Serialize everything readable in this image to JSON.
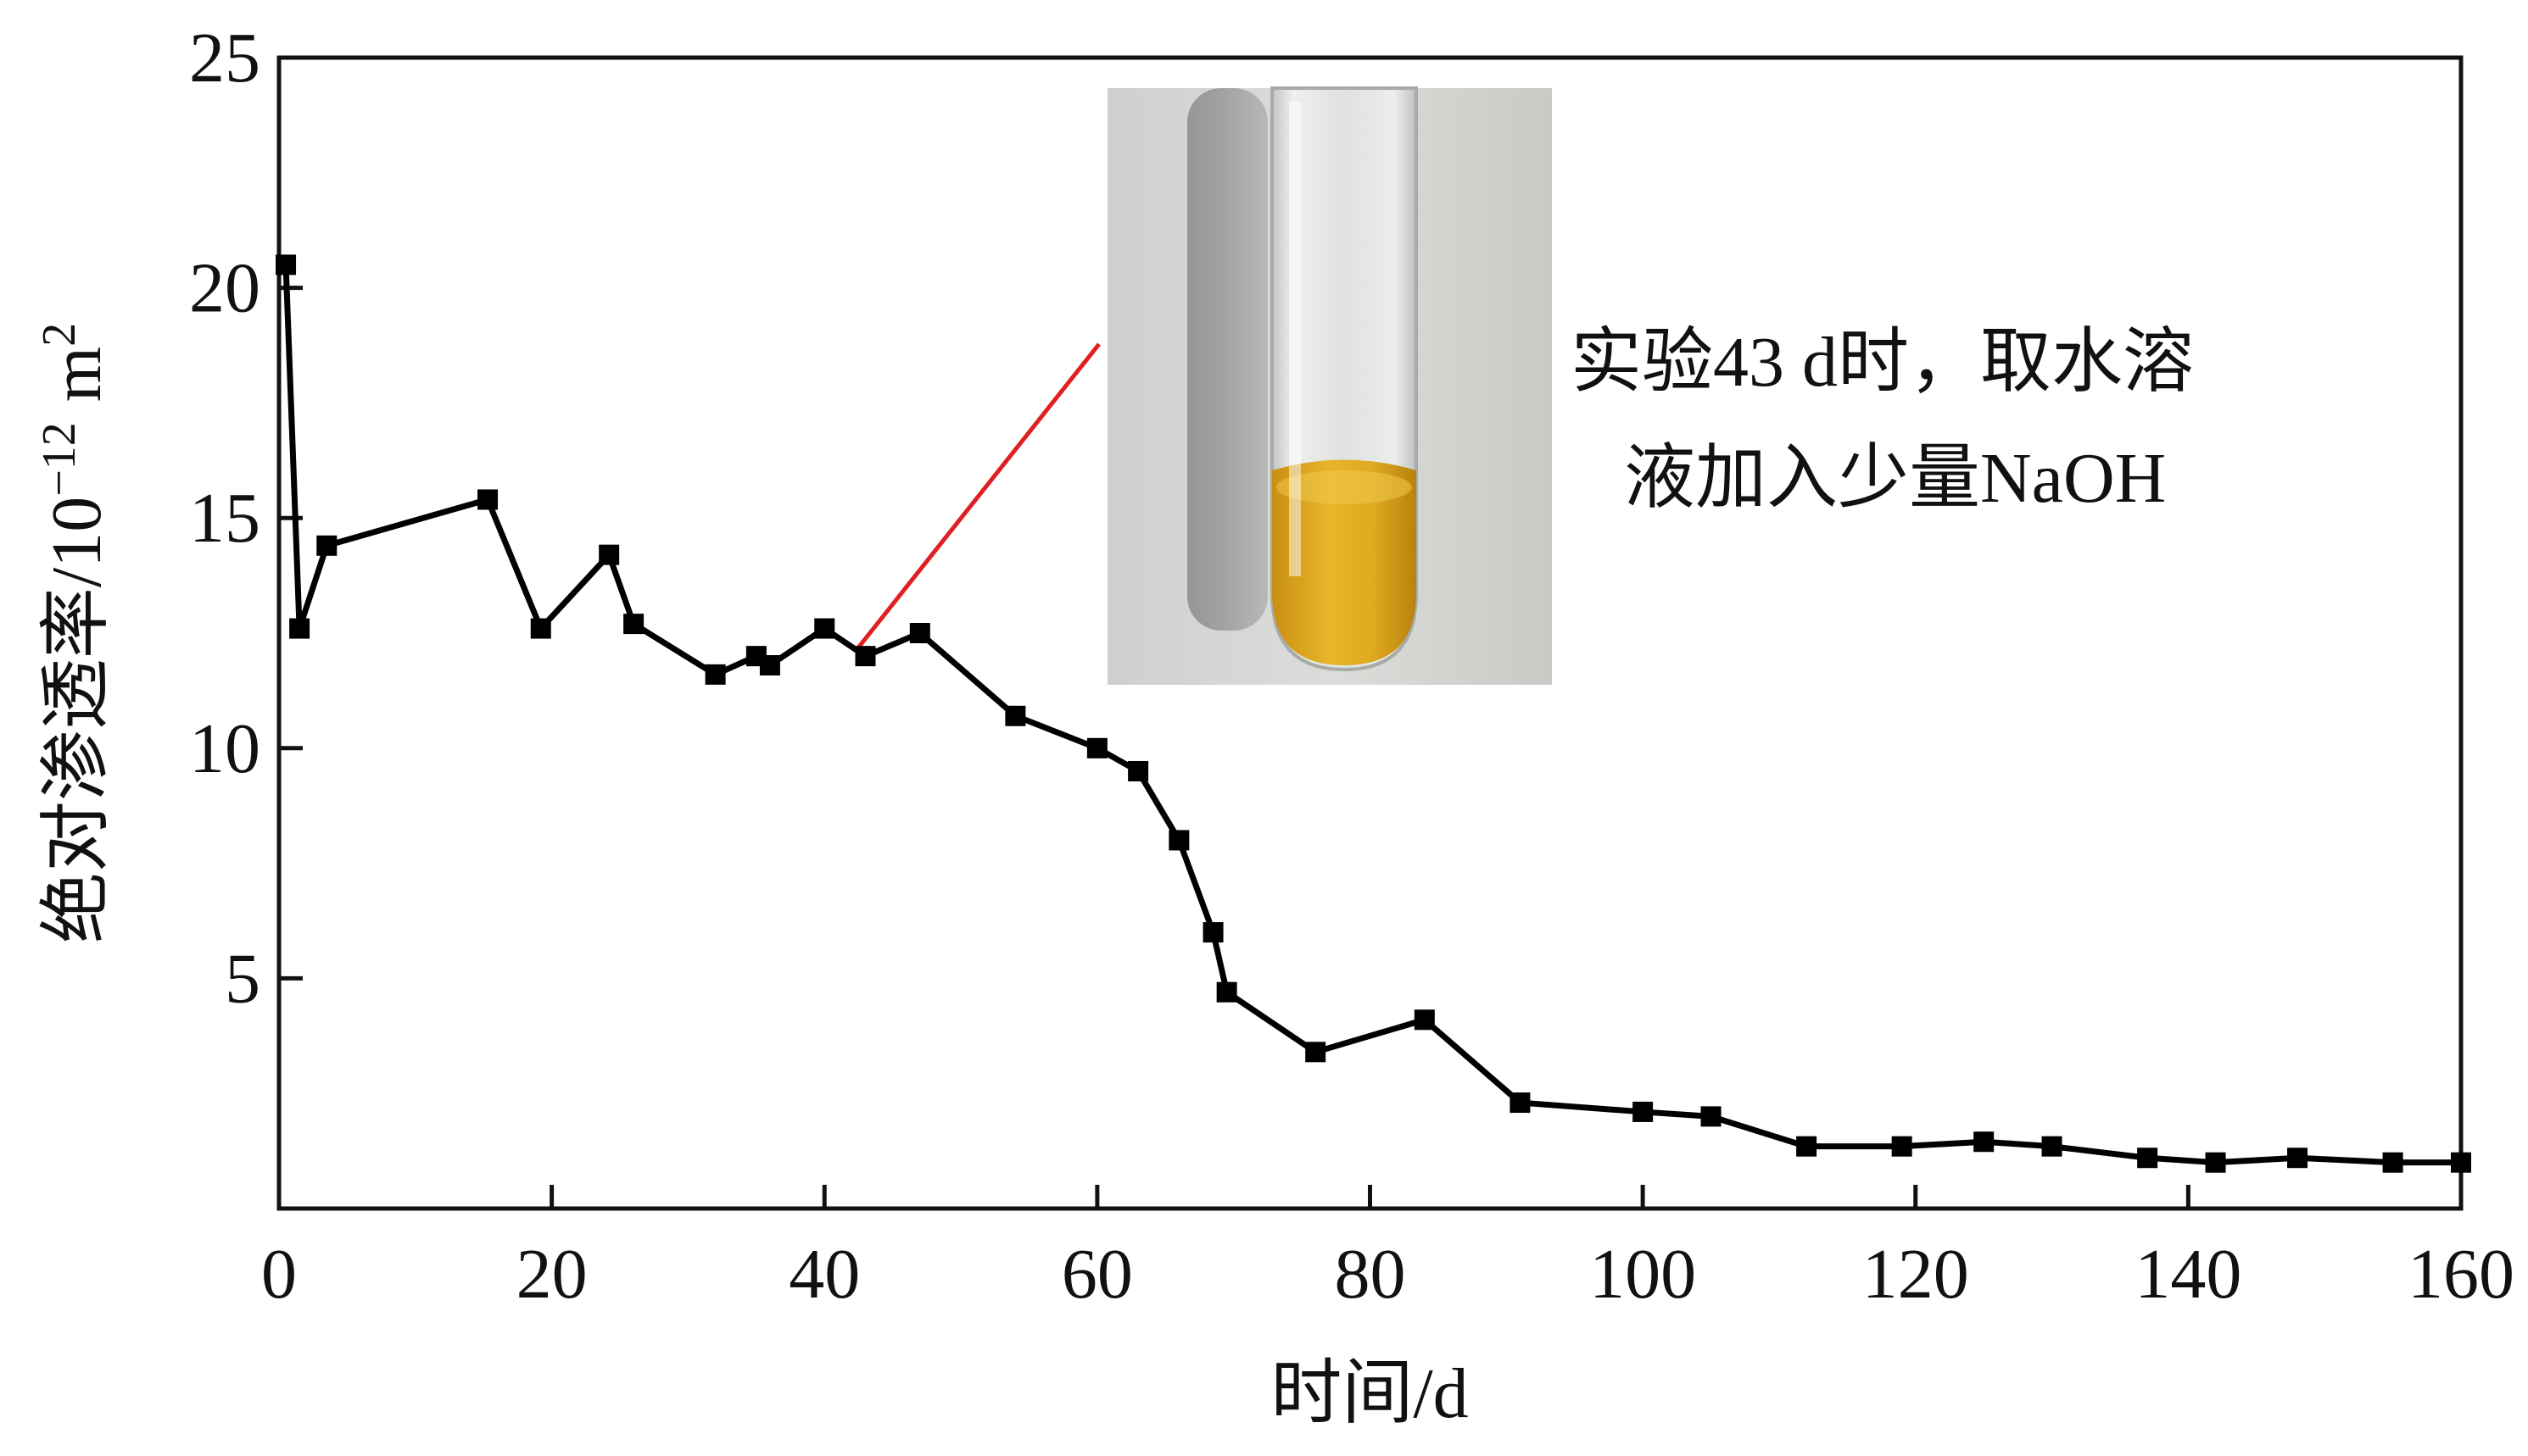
{
  "chart_data": {
    "type": "line",
    "xlabel": "时间/d",
    "ylabel": "绝对渗透率/10",
    "ylabel_exponent": "−12",
    "ylabel_unit": "m",
    "ylabel_unit_exponent": "2",
    "xlim": [
      0,
      160
    ],
    "ylim": [
      0,
      25
    ],
    "xticks": [
      0,
      20,
      40,
      60,
      80,
      100,
      120,
      140,
      160
    ],
    "yticks": [
      5,
      10,
      15,
      20,
      25
    ],
    "grid": false,
    "legend": "none",
    "series": [
      {
        "color": "#000000",
        "marker": "square",
        "x": [
          0.5,
          1.5,
          3.5,
          15.3,
          19.2,
          24.2,
          26,
          32,
          35,
          36,
          40,
          43,
          47,
          54,
          60,
          63,
          66,
          68.5,
          69.5,
          76,
          84,
          91,
          100,
          105,
          112,
          119,
          125,
          130,
          137,
          142,
          148,
          155,
          160
        ],
        "y": [
          20.5,
          12.6,
          14.4,
          15.4,
          12.6,
          14.2,
          12.7,
          11.6,
          12.0,
          11.8,
          12.6,
          12.0,
          12.5,
          10.7,
          10.0,
          9.5,
          8.0,
          6.0,
          4.7,
          3.4,
          4.1,
          2.3,
          2.1,
          2.0,
          1.35,
          1.35,
          1.45,
          1.35,
          1.1,
          1.0,
          1.1,
          1.0,
          1.0
        ]
      }
    ],
    "annotation": {
      "line1": "实验43 d时，取水溶",
      "line2": "液加入少量NaOH",
      "target_x": 43,
      "target_y": 12.0,
      "pointer_color": "#e02020"
    },
    "inset_image": {
      "icon": "test-tube-photo",
      "liquid_color": "#d9a41c"
    }
  }
}
